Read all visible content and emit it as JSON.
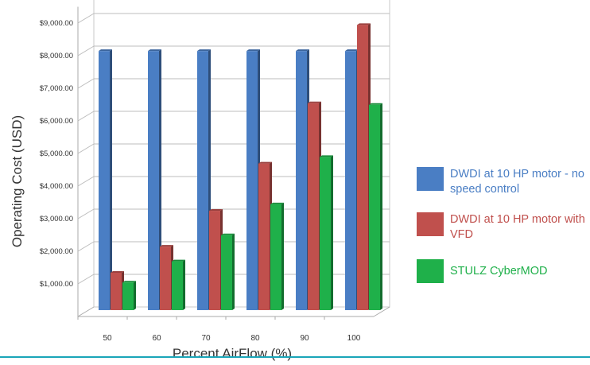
{
  "chart_data": {
    "type": "bar",
    "title": "",
    "xlabel": "Percent AirFlow (%)",
    "ylabel": "Operating Cost (USD)",
    "categories": [
      "50",
      "60",
      "70",
      "80",
      "90",
      "100"
    ],
    "ylim": [
      0,
      9500
    ],
    "yticks": [
      {
        "value": 1000,
        "label": "$1,000.00"
      },
      {
        "value": 2000,
        "label": "$2,000.00"
      },
      {
        "value": 3000,
        "label": "$3,000.00"
      },
      {
        "value": 4000,
        "label": "$4,000.00"
      },
      {
        "value": 5000,
        "label": "$5,000.00"
      },
      {
        "value": 6000,
        "label": "$6,000.00"
      },
      {
        "value": 7000,
        "label": "$7,000.00"
      },
      {
        "value": 8000,
        "label": "$8,000.00"
      },
      {
        "value": 9000,
        "label": "$9,000.00"
      }
    ],
    "grid": true,
    "legend_position": "right",
    "series": [
      {
        "name": "DWDI at 10 HP motor - no speed control",
        "color": "#4a7ec4",
        "values": [
          7850,
          7850,
          7850,
          7850,
          7850,
          7850
        ]
      },
      {
        "name": "DWDI at 10 HP motor with VFD",
        "color": "#c0504d",
        "values": [
          1050,
          1850,
          2950,
          4400,
          6250,
          8650
        ]
      },
      {
        "name": "STULZ CyberMOD",
        "color": "#1fb04a",
        "values": [
          750,
          1400,
          2200,
          3150,
          4600,
          6200
        ]
      }
    ]
  },
  "legend": {
    "items": [
      {
        "label": "DWDI at 10 HP motor - no speed control",
        "color": "#4a7ec4"
      },
      {
        "label": "DWDI at 10 HP motor with VFD",
        "color": "#c0504d"
      },
      {
        "label": "STULZ CyberMOD",
        "color": "#1fb04a"
      }
    ]
  },
  "colors": {
    "accent_rule": "#1aa5b8"
  }
}
